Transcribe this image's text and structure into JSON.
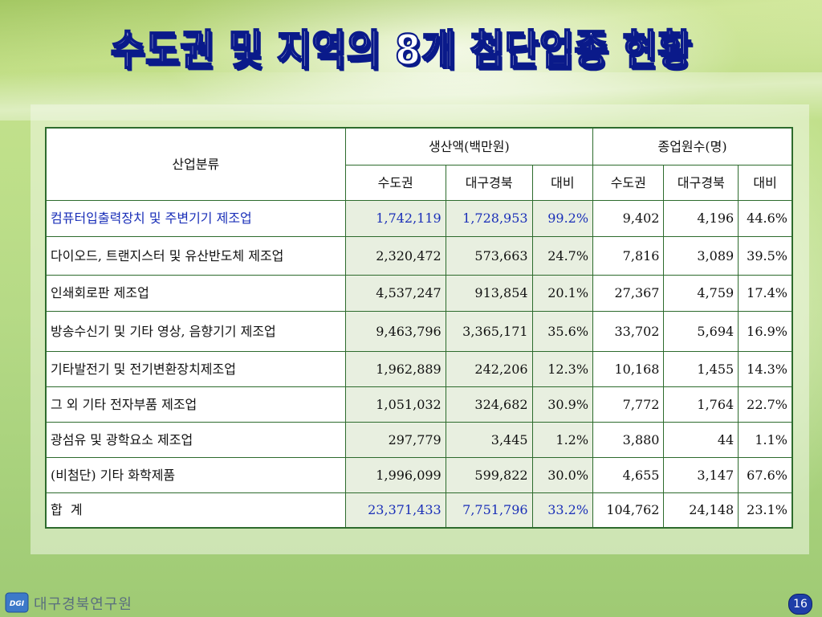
{
  "title": "수도권 및 지역의 8개 첨단업종 현황",
  "table": {
    "header_category": "산업분류",
    "group_production": "생산액(백만원)",
    "group_employees": "종업원수(명)",
    "sub_headers": [
      "수도권",
      "대구경북",
      "대비",
      "수도권",
      "대구경북",
      "대비"
    ],
    "rows": [
      {
        "category": "컴퓨터입출력장치 및 주변기기 제조업",
        "prod_capital": "1,742,119",
        "prod_daegu": "1,728,953",
        "prod_ratio": "99.2%",
        "emp_capital": "9,402",
        "emp_daegu": "4,196",
        "emp_ratio": "44.6%"
      },
      {
        "category": "다이오드, 트랜지스터 및 유산반도체 제조업",
        "prod_capital": "2,320,472",
        "prod_daegu": "573,663",
        "prod_ratio": "24.7%",
        "emp_capital": "7,816",
        "emp_daegu": "3,089",
        "emp_ratio": "39.5%"
      },
      {
        "category": "인쇄회로판 제조업",
        "prod_capital": "4,537,247",
        "prod_daegu": "913,854",
        "prod_ratio": "20.1%",
        "emp_capital": "27,367",
        "emp_daegu": "4,759",
        "emp_ratio": "17.4%"
      },
      {
        "category": "방송수신기 및 기타 영상, 음향기기 제조업",
        "prod_capital": "9,463,796",
        "prod_daegu": "3,365,171",
        "prod_ratio": "35.6%",
        "emp_capital": "33,702",
        "emp_daegu": "5,694",
        "emp_ratio": "16.9%"
      },
      {
        "category": "기타발전기 및 전기변환장치제조업",
        "prod_capital": "1,962,889",
        "prod_daegu": "242,206",
        "prod_ratio": "12.3%",
        "emp_capital": "10,168",
        "emp_daegu": "1,455",
        "emp_ratio": "14.3%"
      },
      {
        "category": "그 외 기타 전자부품 제조업",
        "prod_capital": "1,051,032",
        "prod_daegu": "324,682",
        "prod_ratio": "30.9%",
        "emp_capital": "7,772",
        "emp_daegu": "1,764",
        "emp_ratio": "22.7%"
      },
      {
        "category": "광섬유 및 광학요소 제조업",
        "prod_capital": "297,779",
        "prod_daegu": "3,445",
        "prod_ratio": "1.2%",
        "emp_capital": "3,880",
        "emp_daegu": "44",
        "emp_ratio": "1.1%"
      },
      {
        "category": "(비첨단) 기타 화학제품",
        "prod_capital": "1,996,099",
        "prod_daegu": "599,822",
        "prod_ratio": "30.0%",
        "emp_capital": "4,655",
        "emp_daegu": "3,147",
        "emp_ratio": "67.6%"
      }
    ],
    "total": {
      "category": "합  계",
      "prod_capital": "23,371,433",
      "prod_daegu": "7,751,796",
      "prod_ratio": "33.2%",
      "emp_capital": "104,762",
      "emp_daegu": "24,148",
      "emp_ratio": "23.1%"
    }
  },
  "footer": {
    "org_name": "대구경북연구원",
    "logo_text": "DGI",
    "page_number": "16"
  },
  "colors": {
    "title_outline": "#0a1a8a",
    "table_border": "#2d6b2d",
    "highlight_blue": "#1a2fb8",
    "badge": "#1e3ea8"
  }
}
